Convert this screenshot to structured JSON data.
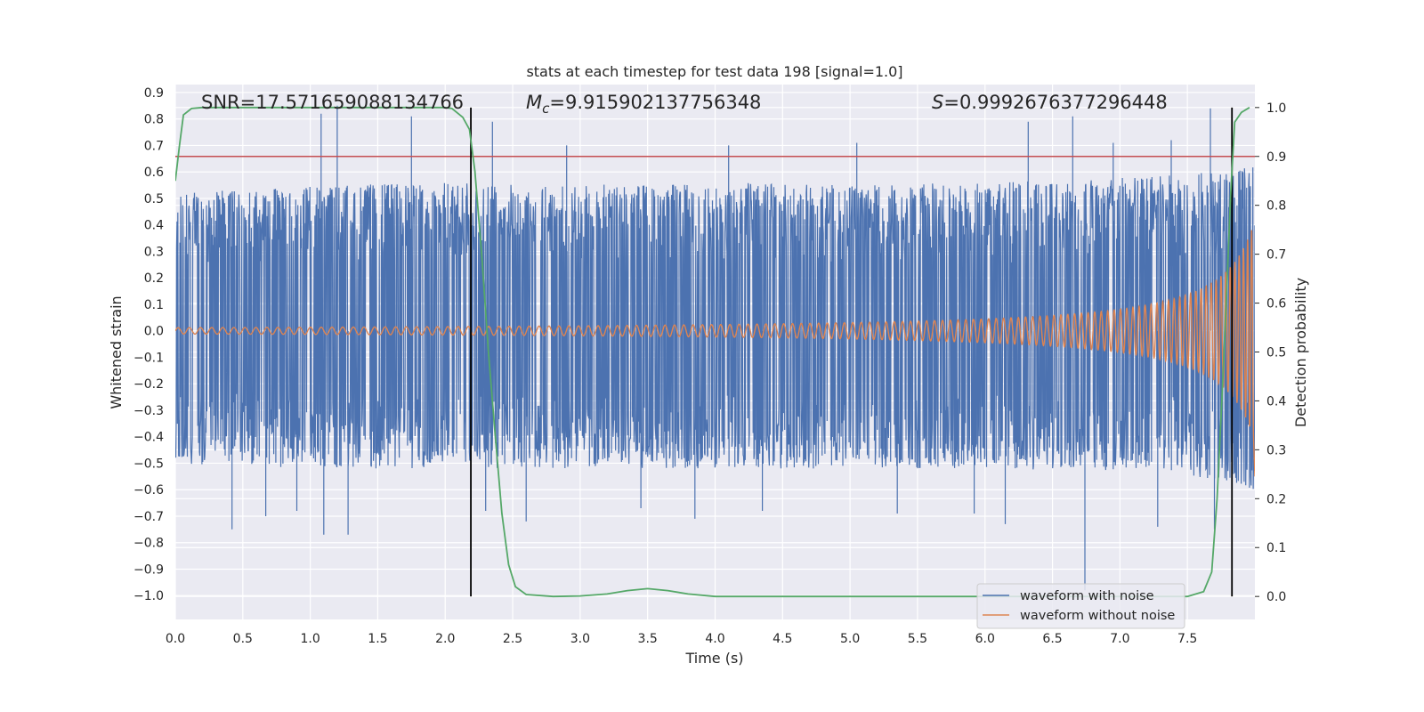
{
  "chart_data": {
    "type": "line",
    "title": "stats at each timestep for test data 198 [signal=1.0]",
    "xlabel": "Time (s)",
    "ylabel": "Whitened strain",
    "y2label": "Detection probability",
    "xlim": [
      0.0,
      8.0
    ],
    "ylim": [
      -1.09,
      0.93
    ],
    "y2lim": [
      -0.047,
      1.047
    ],
    "x_ticks": [
      "0.0",
      "0.5",
      "1.0",
      "1.5",
      "2.0",
      "2.5",
      "3.0",
      "3.5",
      "4.0",
      "4.5",
      "5.0",
      "5.5",
      "6.0",
      "6.5",
      "7.0",
      "7.5"
    ],
    "y_ticks": [
      "0.9",
      "0.8",
      "0.7",
      "0.6",
      "0.5",
      "0.4",
      "0.3",
      "0.2",
      "0.1",
      "0.0",
      "−0.1",
      "−0.2",
      "−0.3",
      "−0.4",
      "−0.5",
      "−0.6",
      "−0.7",
      "−0.8",
      "−0.9",
      "−1.0"
    ],
    "y2_ticks": [
      "1.0",
      "0.9",
      "0.8",
      "0.7",
      "0.6",
      "0.5",
      "0.4",
      "0.3",
      "0.2",
      "0.1",
      "0.0"
    ],
    "grid": true,
    "legend_position": "lower-right",
    "series": [
      {
        "name": "waveform with noise",
        "color": "#4c72b0",
        "envelope": {
          "x": [
            0.0,
            1.0,
            2.0,
            3.0,
            4.0,
            5.0,
            6.0,
            6.5,
            7.0,
            7.5,
            7.8,
            8.0
          ],
          "upper": [
            0.52,
            0.55,
            0.56,
            0.55,
            0.56,
            0.55,
            0.56,
            0.57,
            0.58,
            0.59,
            0.61,
            0.63
          ],
          "lower": [
            -0.5,
            -0.52,
            -0.52,
            -0.52,
            -0.52,
            -0.52,
            -0.52,
            -0.53,
            -0.54,
            -0.55,
            -0.58,
            -0.6
          ]
        },
        "spikes": [
          [
            0.42,
            -0.75
          ],
          [
            0.67,
            -0.7
          ],
          [
            0.9,
            -0.68
          ],
          [
            1.08,
            0.82
          ],
          [
            1.1,
            -0.77
          ],
          [
            1.2,
            0.85
          ],
          [
            1.28,
            -0.77
          ],
          [
            1.75,
            0.81
          ],
          [
            2.3,
            -0.68
          ],
          [
            2.35,
            0.79
          ],
          [
            2.6,
            -0.72
          ],
          [
            2.9,
            0.7
          ],
          [
            3.45,
            -0.67
          ],
          [
            3.85,
            -0.71
          ],
          [
            4.1,
            0.7
          ],
          [
            4.35,
            -0.68
          ],
          [
            5.05,
            0.71
          ],
          [
            5.35,
            -0.69
          ],
          [
            5.92,
            -0.69
          ],
          [
            6.15,
            -0.73
          ],
          [
            6.32,
            0.79
          ],
          [
            6.65,
            0.81
          ],
          [
            6.74,
            -0.98
          ],
          [
            6.95,
            0.71
          ],
          [
            7.28,
            -0.74
          ],
          [
            7.38,
            0.72
          ],
          [
            7.67,
            0.84
          ],
          [
            7.7,
            -0.75
          ]
        ]
      },
      {
        "name": "waveform without noise",
        "color": "#dd8452",
        "chirp": {
          "t_coalescence": 8.25,
          "amp_at_0": 0.012,
          "amp_at_8": 0.42,
          "freq_at_0_hz": 12,
          "freq_at_8_hz": 35,
          "final_value": -0.55
        }
      },
      {
        "name": "Detection probability",
        "color": "#55a868",
        "axis": "right",
        "x": [
          0.0,
          0.03,
          0.06,
          0.12,
          0.2,
          0.5,
          1.0,
          1.5,
          2.0,
          2.05,
          2.13,
          2.18,
          2.22,
          2.27,
          2.32,
          2.37,
          2.42,
          2.47,
          2.52,
          2.6,
          2.8,
          3.0,
          3.2,
          3.35,
          3.5,
          3.65,
          3.8,
          4.0,
          5.0,
          6.0,
          7.0,
          7.5,
          7.62,
          7.68,
          7.72,
          7.76,
          7.79,
          7.82,
          7.85,
          7.9,
          7.96
        ],
        "y": [
          0.85,
          0.92,
          0.985,
          0.998,
          1.0,
          1.0,
          1.0,
          1.0,
          1.0,
          0.998,
          0.98,
          0.955,
          0.87,
          0.7,
          0.5,
          0.33,
          0.17,
          0.065,
          0.02,
          0.004,
          0.0,
          0.001,
          0.005,
          0.012,
          0.016,
          0.012,
          0.005,
          0.0,
          0.0,
          0.0,
          0.0,
          0.0,
          0.01,
          0.05,
          0.2,
          0.43,
          0.62,
          0.82,
          0.97,
          0.99,
          1.0
        ]
      }
    ],
    "threshold": {
      "axis": "right",
      "value": 0.9,
      "color": "#c44e52"
    },
    "vertical_markers": [
      2.19,
      7.83
    ],
    "annotations": {
      "snr": "SNR=17.571659088134766",
      "mc_symbol": "M",
      "mc_subscript": "c",
      "mc_value": "=9.915902137756348",
      "s_symbol": "S",
      "s_value": "=0.9992676377296448"
    }
  }
}
